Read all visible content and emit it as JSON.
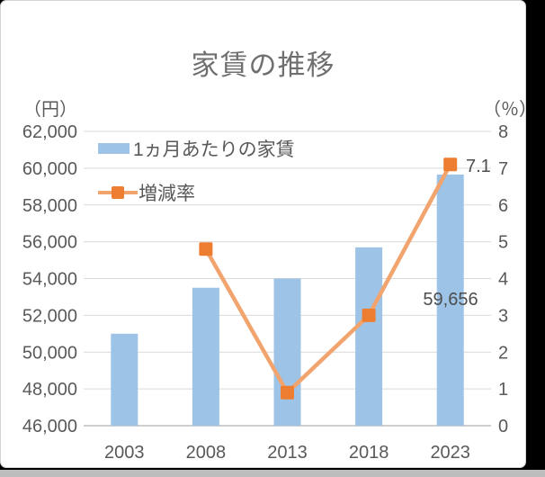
{
  "page": {
    "background_color": "#000000",
    "card_color": "#FFFFFF",
    "card_border_color": "#D4D4D4",
    "bottom_strip_color": "#BDBDBD"
  },
  "chart_data": {
    "type": "combo-bar-line",
    "title": "家賃の推移",
    "categories": [
      "2003",
      "2008",
      "2013",
      "2018",
      "2023"
    ],
    "series": [
      {
        "name": "1ヵ月あたりの家賃",
        "type": "bar",
        "axis": "left",
        "color": "#9DC3E6",
        "values": [
          51000,
          53500,
          54000,
          55695,
          59656
        ]
      },
      {
        "name": "増減率",
        "type": "line",
        "axis": "right",
        "line_color": "#F2A46E",
        "marker_color": "#ED7D31",
        "values": [
          null,
          4.8,
          0.9,
          3.0,
          7.1
        ]
      }
    ],
    "left_axis": {
      "unit_label": "（円）",
      "min": 46000,
      "max": 62000,
      "step": 2000,
      "tick_labels": [
        "62,000",
        "60,000",
        "58,000",
        "56,000",
        "54,000",
        "52,000",
        "50,000",
        "48,000",
        "46,000"
      ]
    },
    "right_axis": {
      "unit_label": "（％）",
      "min": 0,
      "max": 8,
      "step": 1,
      "tick_labels": [
        "8",
        "7",
        "6",
        "5",
        "4",
        "3",
        "2",
        "1",
        "0"
      ]
    },
    "data_labels": [
      {
        "text": "59,656",
        "x": 500,
        "y": 338,
        "anchor": "middle"
      },
      {
        "text": "7.1",
        "x": 517,
        "y": 190,
        "anchor": "start"
      }
    ],
    "legend_position": "inside-top-left",
    "grid": true,
    "gridline_color": "#D9D9D9",
    "axis_line_color": "#BFBFBF",
    "tick_color": "#595959",
    "title_color": "#6F6F6F",
    "data_label_color": "#4D4D4D"
  }
}
